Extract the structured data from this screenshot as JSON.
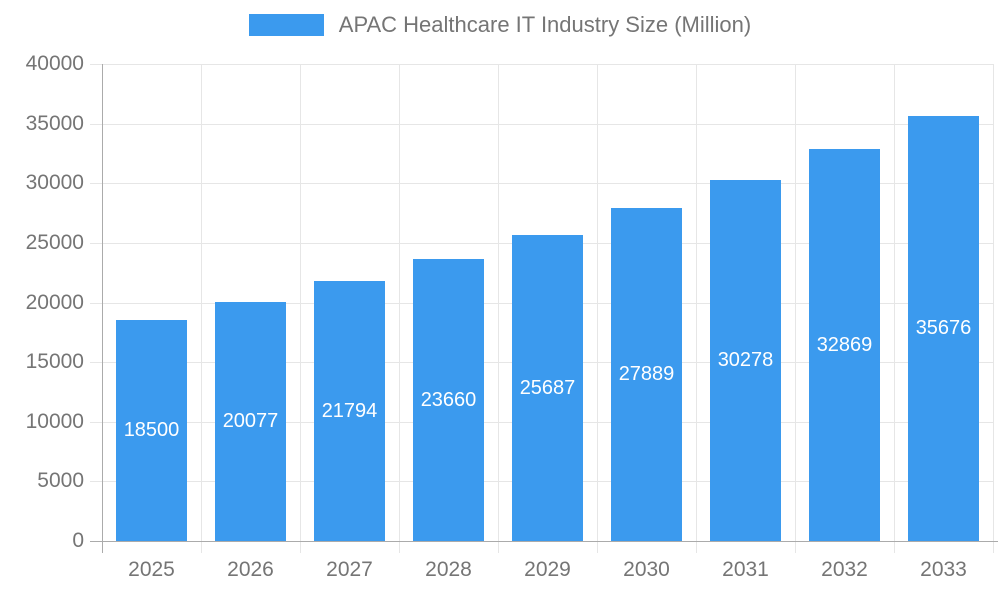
{
  "legend": {
    "label": "APAC Healthcare IT Industry Size (Million)"
  },
  "chart_data": {
    "type": "bar",
    "title": "APAC Healthcare IT Industry Size (Million)",
    "categories": [
      "2025",
      "2026",
      "2027",
      "2028",
      "2029",
      "2030",
      "2031",
      "2032",
      "2033"
    ],
    "values": [
      18500,
      20077,
      21794,
      23660,
      25687,
      27889,
      30278,
      32869,
      35676
    ],
    "xlabel": "",
    "ylabel": "",
    "ylim": [
      0,
      40000
    ],
    "ytick_step": 5000,
    "ytick_labels": [
      "0",
      "5000",
      "10000",
      "15000",
      "20000",
      "25000",
      "30000",
      "35000",
      "40000"
    ],
    "grid": true,
    "legend_position": "top-center",
    "bar_color": "#3B9AEE",
    "value_label_color": "#ffffff",
    "axis_text_color": "#757575",
    "grid_color": "#E6E6E6",
    "axis_line_color": "#ABABAB",
    "background_color": "#ffffff"
  }
}
